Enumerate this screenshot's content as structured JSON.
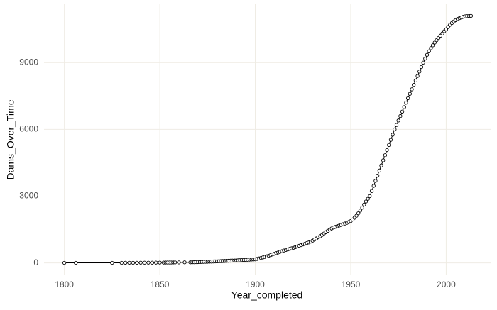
{
  "chart_data": {
    "type": "line",
    "x_label": "Year_completed",
    "y_label": "Dams_Over_Time",
    "x": [
      1800,
      1806,
      1825,
      1830,
      1832,
      1834,
      1836,
      1838,
      1840,
      1842,
      1844,
      1846,
      1848,
      1850,
      1852,
      1853,
      1854,
      1855,
      1856,
      1857,
      1858,
      1860,
      1863,
      1866,
      1867,
      1868,
      1869,
      1870,
      1871,
      1872,
      1873,
      1874,
      1875,
      1876,
      1877,
      1878,
      1879,
      1880,
      1881,
      1882,
      1883,
      1884,
      1885,
      1886,
      1887,
      1888,
      1889,
      1890,
      1891,
      1892,
      1893,
      1894,
      1895,
      1896,
      1897,
      1898,
      1899,
      1900,
      1901,
      1902,
      1903,
      1904,
      1905,
      1906,
      1907,
      1908,
      1909,
      1910,
      1911,
      1912,
      1913,
      1914,
      1915,
      1916,
      1917,
      1918,
      1919,
      1920,
      1921,
      1922,
      1923,
      1924,
      1925,
      1926,
      1927,
      1928,
      1929,
      1930,
      1931,
      1932,
      1933,
      1934,
      1935,
      1936,
      1937,
      1938,
      1939,
      1940,
      1941,
      1942,
      1943,
      1944,
      1945,
      1946,
      1947,
      1948,
      1949,
      1950,
      1951,
      1952,
      1953,
      1954,
      1955,
      1956,
      1957,
      1958,
      1959,
      1960,
      1961,
      1962,
      1963,
      1964,
      1965,
      1966,
      1967,
      1968,
      1969,
      1970,
      1971,
      1972,
      1973,
      1974,
      1975,
      1976,
      1977,
      1978,
      1979,
      1980,
      1981,
      1982,
      1983,
      1984,
      1985,
      1986,
      1987,
      1988,
      1989,
      1990,
      1991,
      1992,
      1993,
      1994,
      1995,
      1996,
      1997,
      1998,
      1999,
      2000,
      2001,
      2002,
      2003,
      2004,
      2005,
      2006,
      2007,
      2008,
      2009,
      2010,
      2011,
      2012,
      2013
    ],
    "series": [
      {
        "name": "Dams_Over_Time",
        "color": "#000000",
        "values": [
          1,
          2,
          3,
          4,
          5,
          6,
          7,
          8,
          9,
          10,
          11,
          12,
          13,
          14,
          16,
          17,
          18,
          19,
          20,
          21,
          22,
          24,
          26,
          28,
          30,
          32,
          34,
          37,
          40,
          43,
          46,
          50,
          53,
          57,
          60,
          64,
          68,
          72,
          76,
          80,
          84,
          88,
          92,
          96,
          100,
          104,
          108,
          112,
          116,
          120,
          125,
          130,
          135,
          140,
          145,
          150,
          155,
          160,
          180,
          200,
          220,
          245,
          270,
          295,
          320,
          350,
          380,
          410,
          440,
          470,
          500,
          530,
          555,
          580,
          605,
          630,
          655,
          680,
          710,
          740,
          770,
          800,
          830,
          860,
          890,
          920,
          955,
          1000,
          1050,
          1100,
          1150,
          1200,
          1260,
          1320,
          1380,
          1440,
          1500,
          1550,
          1590,
          1620,
          1650,
          1680,
          1710,
          1740,
          1770,
          1800,
          1840,
          1880,
          1950,
          2030,
          2120,
          2230,
          2350,
          2480,
          2620,
          2760,
          2880,
          3000,
          3230,
          3460,
          3690,
          3920,
          4150,
          4380,
          4610,
          4840,
          5070,
          5300,
          5530,
          5760,
          6000,
          6200,
          6400,
          6600,
          6800,
          7000,
          7200,
          7400,
          7600,
          7800,
          8000,
          8200,
          8400,
          8600,
          8800,
          9000,
          9180,
          9350,
          9510,
          9650,
          9780,
          9900,
          10010,
          10110,
          10210,
          10310,
          10410,
          10500,
          10600,
          10700,
          10780,
          10850,
          10910,
          10960,
          11000,
          11030,
          11060,
          11080,
          11090,
          11095,
          11100
        ]
      }
    ],
    "xlim": [
      1789.35,
      2023.65
    ],
    "xticks": [
      1800,
      1850,
      1900,
      1950,
      2000
    ],
    "ylim": [
      -555,
      11655
    ],
    "yticks": [
      0,
      3000,
      6000,
      9000
    ],
    "grid": true,
    "point_fill": "#ffffff"
  }
}
